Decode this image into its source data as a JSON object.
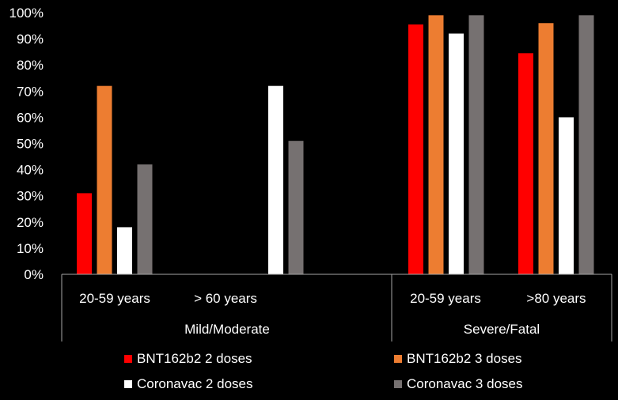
{
  "chart_data": {
    "type": "bar",
    "y_ticks": [
      "0%",
      "10%",
      "20%",
      "30%",
      "40%",
      "50%",
      "60%",
      "70%",
      "80%",
      "90%",
      "100%"
    ],
    "ylim": [
      0,
      100
    ],
    "groups": [
      {
        "name": "Mild/Moderate",
        "categories": [
          {
            "label": "20-59 years",
            "values": [
              31,
              72,
              18,
              42
            ]
          },
          {
            "label": "> 60 years",
            "values": [
              null,
              null,
              72,
              51
            ]
          }
        ]
      },
      {
        "name": "Severe/Fatal",
        "categories": [
          {
            "label": "20-59 years",
            "values": [
              95.5,
              99,
              92,
              99
            ]
          },
          {
            "label": ">80 years",
            "values": [
              84.5,
              96,
              60,
              99
            ]
          }
        ]
      }
    ],
    "series": [
      {
        "name": "BNT162b2 2 doses",
        "color": "#ff0000"
      },
      {
        "name": "BNT162b2 3 doses",
        "color": "#ed7d31"
      },
      {
        "name": "Coronavac 2 doses",
        "color": "#ffffff"
      },
      {
        "name": "Coronavac 3 doses",
        "color": "#767171"
      }
    ],
    "legend_position": "bottom",
    "grid": false
  }
}
